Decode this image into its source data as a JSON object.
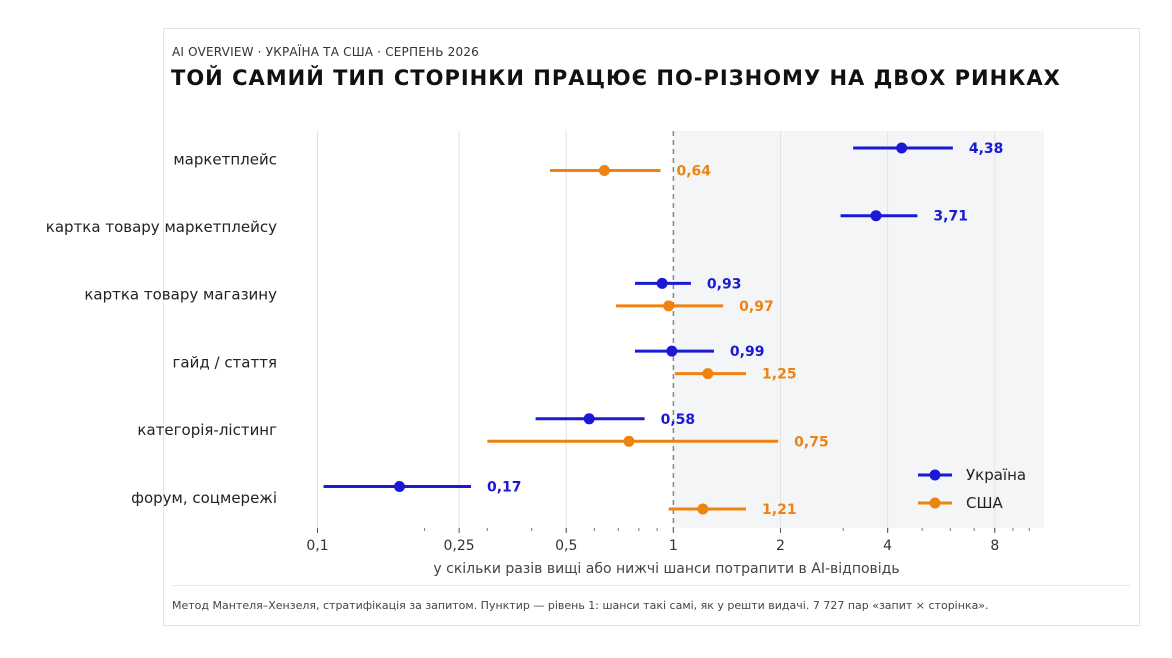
{
  "header": {
    "kicker": "AI OVERVIEW · УКРАЇНА ТА США · СЕРПЕНЬ 2026",
    "title": "ТОЙ САМИЙ ТИП СТОРІНКИ ПРАЦЮЄ ПО-РІЗНОМУ НА ДВОХ РИНКАХ"
  },
  "footnote": "Метод Мантеля–Хензеля, стратифікація за запитом. Пунктир — рівень 1: шанси такі самі, як у решти видачі.  7 727 пар «запит × сторінка».",
  "colors": {
    "ukraine": "#1a1ad6",
    "usa": "#ee8310",
    "shade": "#f3f5f7",
    "grid": "#e2e2e2",
    "ref": "#888888"
  },
  "chart_data": {
    "type": "forest",
    "xscale": "log",
    "xlim": [
      0.08,
      11
    ],
    "xticks": [
      0.1,
      0.25,
      0.5,
      1,
      2,
      4,
      8
    ],
    "xtick_labels": [
      "0,1",
      "0,25",
      "0,5",
      "1",
      "2",
      "4",
      "8"
    ],
    "xlabel": "у скільки разів вищі або нижчі шанси потрапити в AI-відповідь",
    "reference_line": 1,
    "shaded_region": [
      1,
      11
    ],
    "legend_position": "bottom-right",
    "categories": [
      "маркетплейс",
      "картка товару маркетплейсу",
      "картка товару магазину",
      "гайд / стаття",
      "категорія-лістинг",
      "форум, соцмережі"
    ],
    "series": [
      {
        "name": "Україна",
        "values": [
          4.38,
          3.71,
          0.93,
          0.99,
          0.58,
          0.17
        ],
        "labels": [
          "4,38",
          "3,71",
          "0,93",
          "0,99",
          "0,58",
          "0,17"
        ],
        "ci_low": [
          3.2,
          2.95,
          0.78,
          0.78,
          0.41,
          0.104
        ],
        "ci_high": [
          6.1,
          4.85,
          1.12,
          1.3,
          0.83,
          0.27
        ]
      },
      {
        "name": "США",
        "values": [
          0.64,
          null,
          0.97,
          1.25,
          0.75,
          1.21
        ],
        "labels": [
          "0,64",
          "",
          "0,97",
          "1,25",
          "0,75",
          "1,21"
        ],
        "ci_low": [
          0.45,
          null,
          0.69,
          1.01,
          0.3,
          0.97
        ],
        "ci_high": [
          0.92,
          null,
          1.38,
          1.6,
          1.97,
          1.6
        ]
      }
    ]
  }
}
